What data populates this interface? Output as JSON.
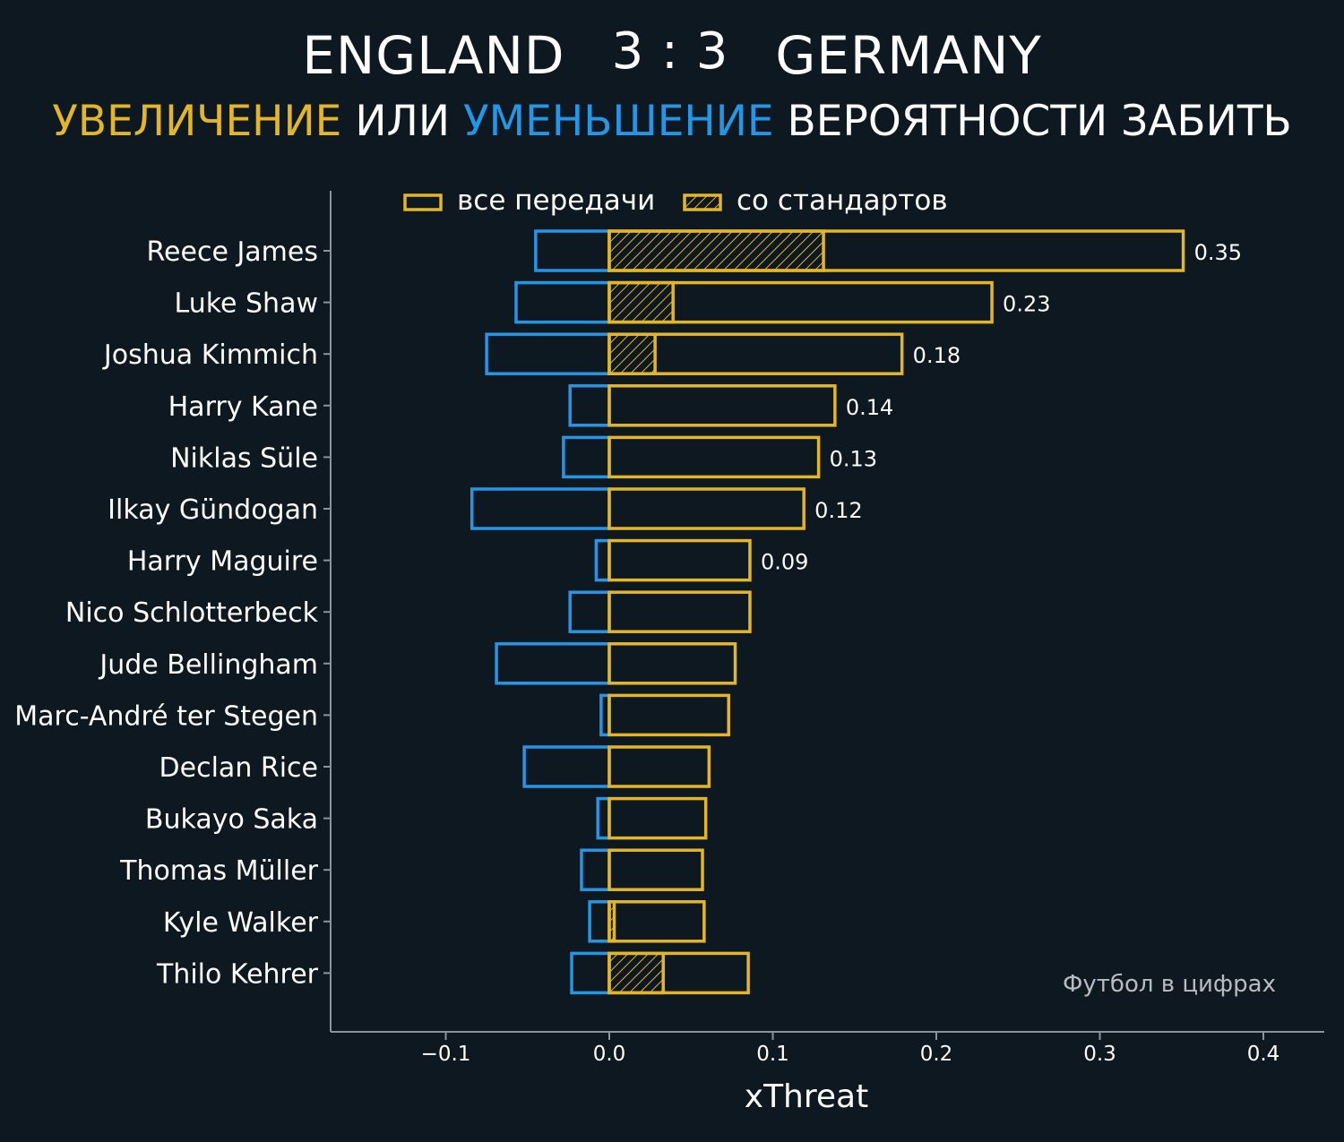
{
  "header": {
    "home_team": "ENGLAND",
    "score": "3 : 3",
    "away_team": "GERMANY",
    "subtitle_increase": "УВЕЛИЧЕНИЕ",
    "subtitle_or": "ИЛИ",
    "subtitle_decrease": "УМЕНЬШЕНИЕ",
    "subtitle_rest": "ВЕРОЯТНОСТИ ЗАБИТЬ"
  },
  "watermark": "Футбол в цифрах",
  "colors": {
    "background": "#0e1820",
    "positive": "#e3b62a",
    "negative": "#2596e6",
    "axis": "#8a949c",
    "text": "#ffffff"
  },
  "chart_data": {
    "type": "bar",
    "orientation": "horizontal",
    "xlabel": "xThreat",
    "xlim": [
      -0.17,
      0.44
    ],
    "xticks": [
      -0.1,
      0.0,
      0.1,
      0.2,
      0.3,
      0.4
    ],
    "xtick_labels": [
      "−0.1",
      "0.0",
      "0.1",
      "0.2",
      "0.3",
      "0.4"
    ],
    "legend": {
      "placement": "top",
      "entries": [
        {
          "label": "все передачи",
          "style": "outline"
        },
        {
          "label": "со стандартов",
          "style": "hatched"
        }
      ]
    },
    "categories": [
      "Reece James",
      "Luke Shaw",
      "Joshua Kimmich",
      "Harry Kane",
      "Niklas Süle",
      "Ilkay Gündogan",
      "Harry Maguire",
      "Nico Schlotterbeck",
      "Jude Bellingham",
      "Marc-André ter Stegen",
      "Declan Rice",
      "Bukayo Saka",
      "Thomas Müller",
      "Kyle Walker",
      "Thilo Kehrer"
    ],
    "series": [
      {
        "name": "все передачи",
        "values": [
          0.351,
          0.234,
          0.179,
          0.138,
          0.128,
          0.119,
          0.086,
          0.086,
          0.077,
          0.073,
          0.061,
          0.059,
          0.057,
          0.058,
          0.085
        ]
      },
      {
        "name": "со стандартов",
        "values": [
          0.131,
          0.039,
          0.028,
          0,
          0,
          0,
          0,
          0,
          0,
          0,
          0,
          0,
          0,
          0.003,
          0.033
        ]
      },
      {
        "name": "negative",
        "values": [
          -0.045,
          -0.057,
          -0.075,
          -0.024,
          -0.028,
          -0.084,
          -0.008,
          -0.024,
          -0.069,
          -0.005,
          -0.052,
          -0.007,
          -0.017,
          -0.012,
          -0.023
        ]
      }
    ],
    "data_labels": [
      "0.35",
      "0.23",
      "0.18",
      "0.14",
      "0.13",
      "0.12",
      "0.09",
      "",
      "",
      "",
      "",
      "",
      "",
      "",
      ""
    ]
  }
}
